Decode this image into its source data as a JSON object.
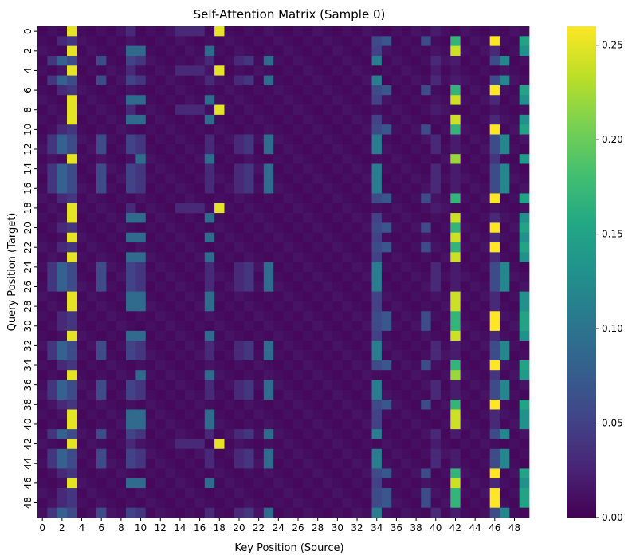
{
  "chart_data": {
    "type": "heatmap",
    "title": "Self-Attention Matrix (Sample 0)",
    "xlabel": "Key Position (Source)",
    "ylabel": "Query Position (Target)",
    "rows": 50,
    "cols": 50,
    "x_tick_labels": [
      "0",
      "2",
      "4",
      "6",
      "8",
      "10",
      "12",
      "14",
      "16",
      "18",
      "20",
      "22",
      "24",
      "26",
      "28",
      "30",
      "32",
      "34",
      "36",
      "38",
      "40",
      "42",
      "44",
      "46",
      "48"
    ],
    "y_tick_labels": [
      "0",
      "2",
      "4",
      "6",
      "8",
      "10",
      "12",
      "14",
      "16",
      "18",
      "20",
      "22",
      "24",
      "26",
      "28",
      "30",
      "32",
      "34",
      "36",
      "38",
      "40",
      "42",
      "44",
      "46",
      "48"
    ],
    "colorbar": {
      "min": 0.0,
      "max": 0.26,
      "tick_values": [
        0.0,
        0.05,
        0.1,
        0.15,
        0.2,
        0.25
      ],
      "tick_labels": [
        "0.00",
        "0.05",
        "0.10",
        "0.15",
        "0.20",
        "0.25"
      ],
      "colormap": "viridis"
    },
    "row_patterns": {
      "A": {
        "3": 0.25,
        "18": 0.25,
        "9": 0.03,
        "14": 0.03,
        "15": 0.03,
        "16": 0.03,
        "40": 0.02
      },
      "B": {
        "3": 0.25,
        "9": 0.09,
        "10": 0.09,
        "17": 0.09,
        "34": 0.05,
        "42": 0.24,
        "46": 0.03,
        "49": 0.13
      },
      "C": {
        "1": 0.04,
        "2": 0.08,
        "3": 0.06,
        "6": 0.06,
        "9": 0.05,
        "10": 0.04,
        "17": 0.03,
        "20": 0.03,
        "21": 0.04,
        "23": 0.09,
        "34": 0.11,
        "40": 0.03,
        "42": 0.02,
        "46": 0.06,
        "47": 0.12
      },
      "D": {
        "2": 0.03,
        "3": 0.04,
        "34": 0.06,
        "35": 0.07,
        "39": 0.06,
        "42": 0.17,
        "46": 0.26,
        "49": 0.15
      },
      "E": {
        "3": 0.25,
        "10": 0.09,
        "17": 0.09,
        "42": 0.22,
        "46": 0.04,
        "49": 0.14
      }
    },
    "row_assignment": [
      "A",
      "D",
      "B",
      "C",
      "A",
      "C",
      "D",
      "B",
      "A",
      "B",
      "D",
      "C",
      "C",
      "E",
      "C",
      "C",
      "C",
      "D",
      "A",
      "B",
      "D",
      "B",
      "D",
      "B",
      "C",
      "C",
      "C",
      "B",
      "B",
      "D",
      "D",
      "B",
      "C",
      "C",
      "D",
      "E",
      "C",
      "C",
      "D",
      "B",
      "B",
      "C",
      "A",
      "C",
      "C",
      "D",
      "B",
      "D",
      "D",
      "C"
    ]
  }
}
